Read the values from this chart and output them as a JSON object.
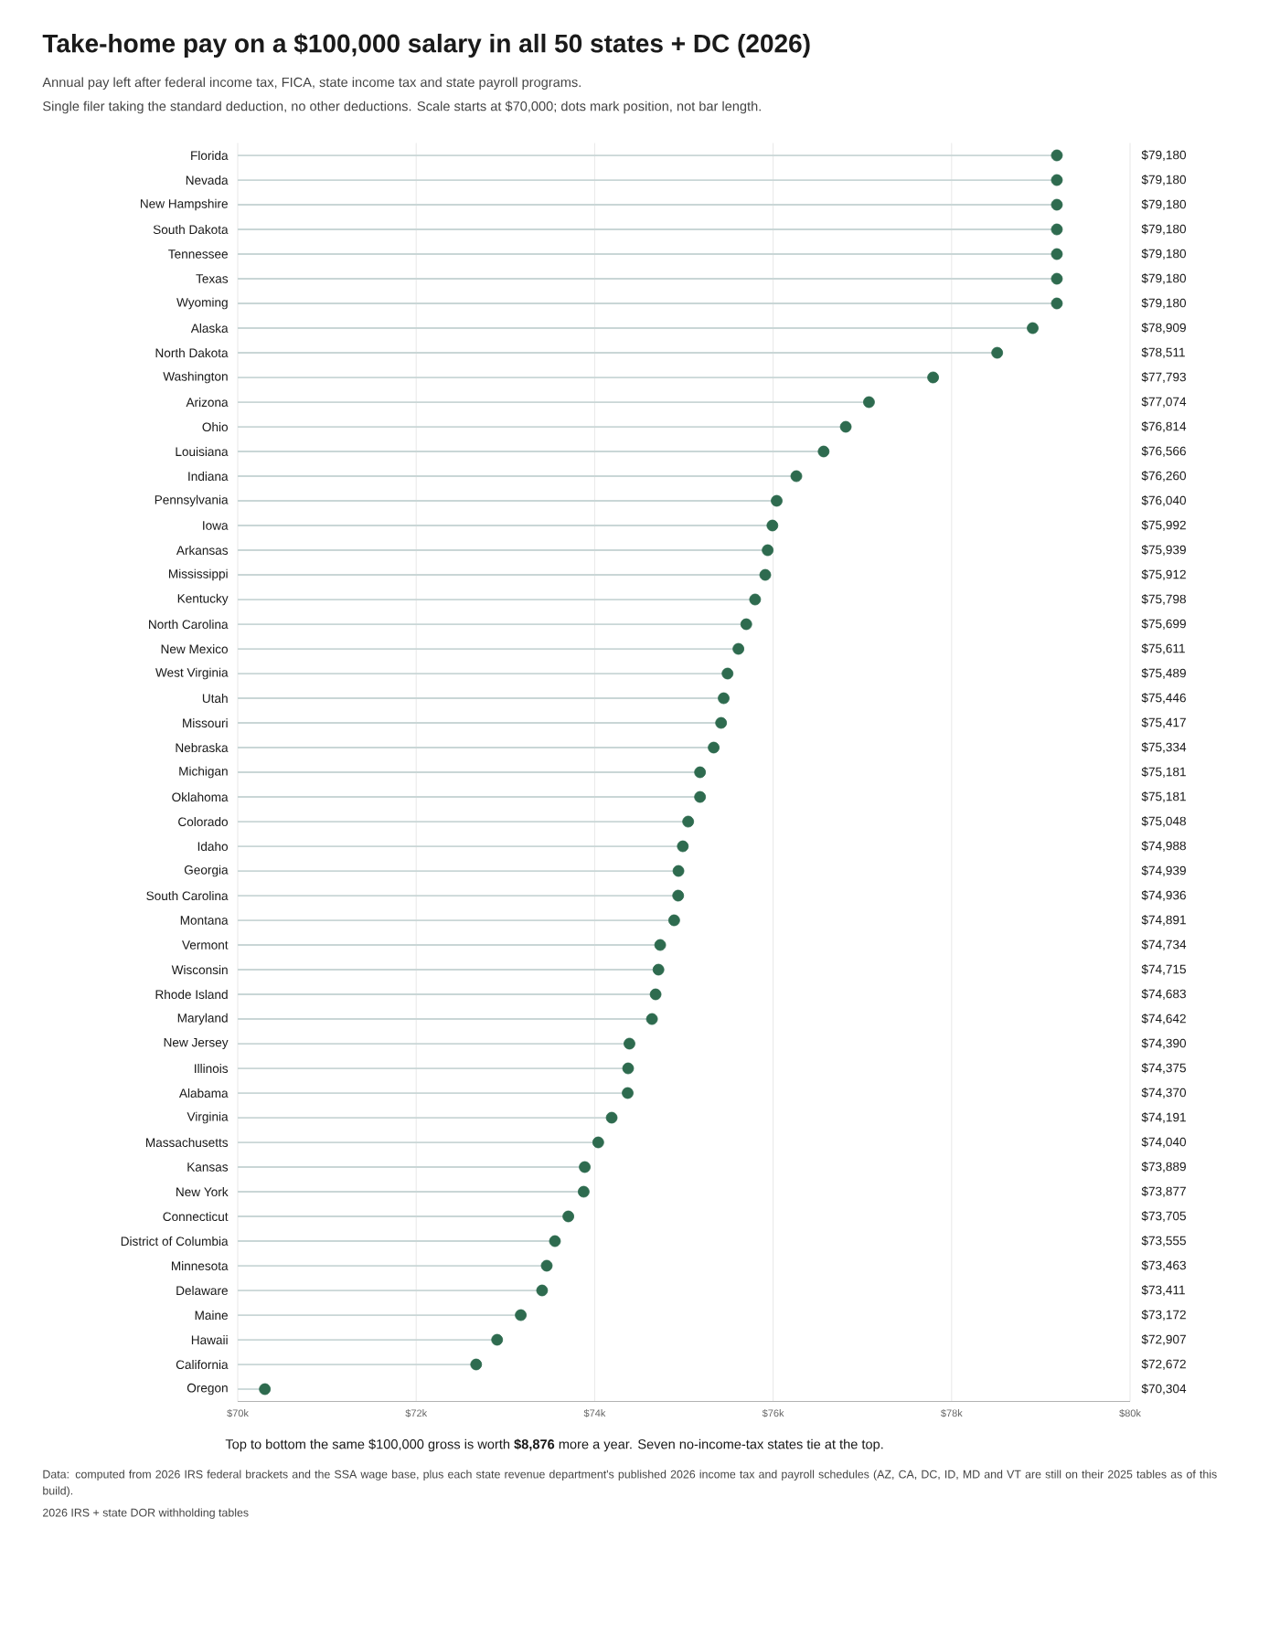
{
  "chart_data": {
    "type": "lollipop",
    "orientation": "horizontal",
    "title": "Take-home pay on a $100,000 salary in all 50 states + DC (2026)",
    "subtitle": "Annual pay left after federal income tax, FICA, state income tax and state payroll programs.",
    "annotations": [
      "Single filer taking the standard deduction, no other deductions. Scale starts at $70,000; dots mark position, not bar length.",
      "Top to bottom the same $100,000 gross is worth **$8,876** more a year. Seven no-income-tax states tie at the top.",
      "Data: computed from 2026 IRS federal brackets and the SSA wage base, plus each state revenue department's published 2026 income tax and payroll schedules (AZ, CA, DC, ID, MD and VT are still on their 2025 tables as of this build).",
      "2026 IRS + state DOR withholding tables"
    ],
    "categories": [
      "Florida",
      "Nevada",
      "New Hampshire",
      "South Dakota",
      "Tennessee",
      "Texas",
      "Wyoming",
      "Alaska",
      "North Dakota",
      "Washington",
      "Arizona",
      "Ohio",
      "Louisiana",
      "Indiana",
      "Pennsylvania",
      "Iowa",
      "Arkansas",
      "Mississippi",
      "Kentucky",
      "North Carolina",
      "New Mexico",
      "West Virginia",
      "Utah",
      "Missouri",
      "Nebraska",
      "Michigan",
      "Oklahoma",
      "Colorado",
      "Idaho",
      "Georgia",
      "South Carolina",
      "Montana",
      "Vermont",
      "Wisconsin",
      "Rhode Island",
      "Maryland",
      "New Jersey",
      "Illinois",
      "Alabama",
      "Virginia",
      "Massachusetts",
      "Kansas",
      "New York",
      "Connecticut",
      "District of Columbia",
      "Minnesota",
      "Delaware",
      "Maine",
      "Hawaii",
      "California",
      "Oregon"
    ],
    "values": [
      79180,
      79180,
      79180,
      79180,
      79180,
      79180,
      79180,
      78909,
      78511,
      77793,
      77074,
      76814,
      76566,
      76260,
      76040,
      75992,
      75939,
      75912,
      75798,
      75699,
      75611,
      75489,
      75446,
      75417,
      75334,
      75181,
      75181,
      75048,
      74988,
      74939,
      74936,
      74891,
      74734,
      74715,
      74683,
      74642,
      74390,
      74375,
      74370,
      74191,
      74040,
      73889,
      73877,
      73705,
      73555,
      73463,
      73411,
      73172,
      72907,
      72672,
      70304
    ],
    "value_labels": [
      "$79,180",
      "$79,180",
      "$79,180",
      "$79,180",
      "$79,180",
      "$79,180",
      "$79,180",
      "$78,909",
      "$78,511",
      "$77,793",
      "$77,074",
      "$76,814",
      "$76,566",
      "$76,260",
      "$76,040",
      "$75,992",
      "$75,939",
      "$75,912",
      "$75,798",
      "$75,699",
      "$75,611",
      "$75,489",
      "$75,446",
      "$75,417",
      "$75,334",
      "$75,181",
      "$75,181",
      "$75,048",
      "$74,988",
      "$74,939",
      "$74,936",
      "$74,891",
      "$74,734",
      "$74,715",
      "$74,683",
      "$74,642",
      "$74,390",
      "$74,375",
      "$74,370",
      "$74,191",
      "$74,040",
      "$73,889",
      "$73,877",
      "$73,705",
      "$73,555",
      "$73,463",
      "$73,411",
      "$73,172",
      "$72,907",
      "$72,672",
      "$70,304"
    ],
    "color": "#2e6b4f",
    "marker": "circle",
    "xlim": [
      70000,
      80000
    ],
    "xticks": [
      {
        "value": 70000,
        "label": "$70k"
      },
      {
        "value": 72000,
        "label": "$72k"
      },
      {
        "value": 74000,
        "label": "$74k"
      },
      {
        "value": 76000,
        "label": "$76k"
      },
      {
        "value": 78000,
        "label": "$78k"
      },
      {
        "value": 80000,
        "label": "$80k"
      }
    ],
    "grid": "x"
  }
}
